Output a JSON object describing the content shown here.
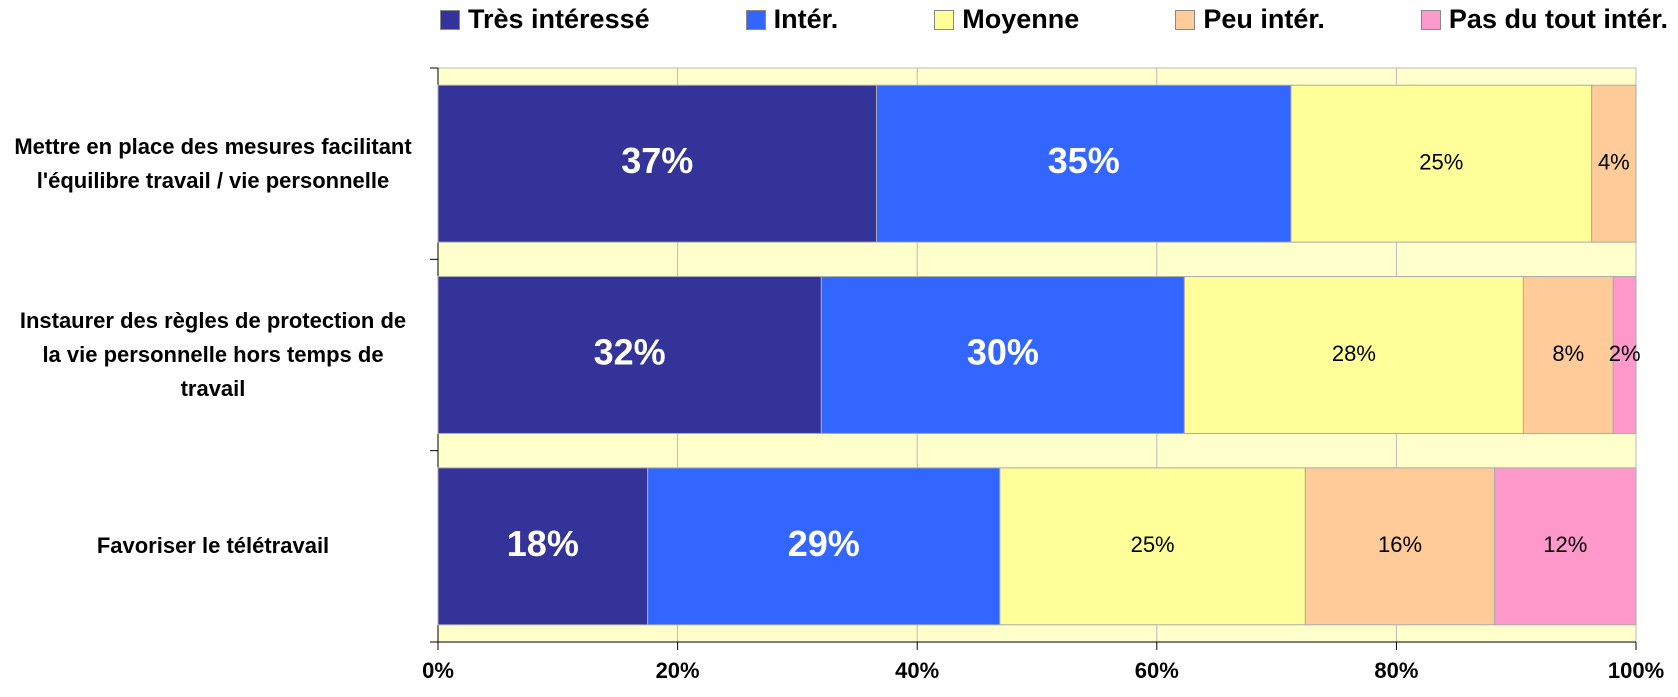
{
  "chart_data": {
    "type": "stacked_bar_horizontal",
    "categories": [
      "Mettre en place des mesures facilitant l'équilibre travail / vie personnelle",
      "Instaurer des règles de protection de la vie personnelle hors temps de travail",
      "Favoriser le télétravail"
    ],
    "series": [
      {
        "name": "Très intéressé",
        "color": "#333399",
        "values": [
          36.6,
          32.0,
          17.5
        ],
        "value_labels": [
          "37%",
          "32%",
          "18%"
        ]
      },
      {
        "name": "Intér.",
        "color": "#3366FF",
        "values": [
          34.6,
          30.3,
          29.4
        ],
        "value_labels": [
          "35%",
          "30%",
          "29%"
        ]
      },
      {
        "name": "Moyenne",
        "color": "#FFFF99",
        "values": [
          25.1,
          28.3,
          25.5
        ],
        "value_labels": [
          "25%",
          "28%",
          "25%"
        ]
      },
      {
        "name": "Peu intér.",
        "color": "#FFCC99",
        "values": [
          3.7,
          7.5,
          15.8
        ],
        "value_labels": [
          "4%",
          "8%",
          "16%"
        ]
      },
      {
        "name": "Pas du tout intér.",
        "color": "#FF99CC",
        "values": [
          0,
          1.9,
          11.8
        ],
        "value_labels": [
          null,
          "2%",
          "12%"
        ]
      }
    ],
    "xlim": [
      0,
      100
    ],
    "xticks": [
      {
        "value": 0,
        "label": "0%"
      },
      {
        "value": 20,
        "label": "20%"
      },
      {
        "value": 40,
        "label": "40%"
      },
      {
        "value": 60,
        "label": "60%"
      },
      {
        "value": 80,
        "label": "80%"
      },
      {
        "value": 100,
        "label": "100%"
      }
    ],
    "grid": true
  }
}
